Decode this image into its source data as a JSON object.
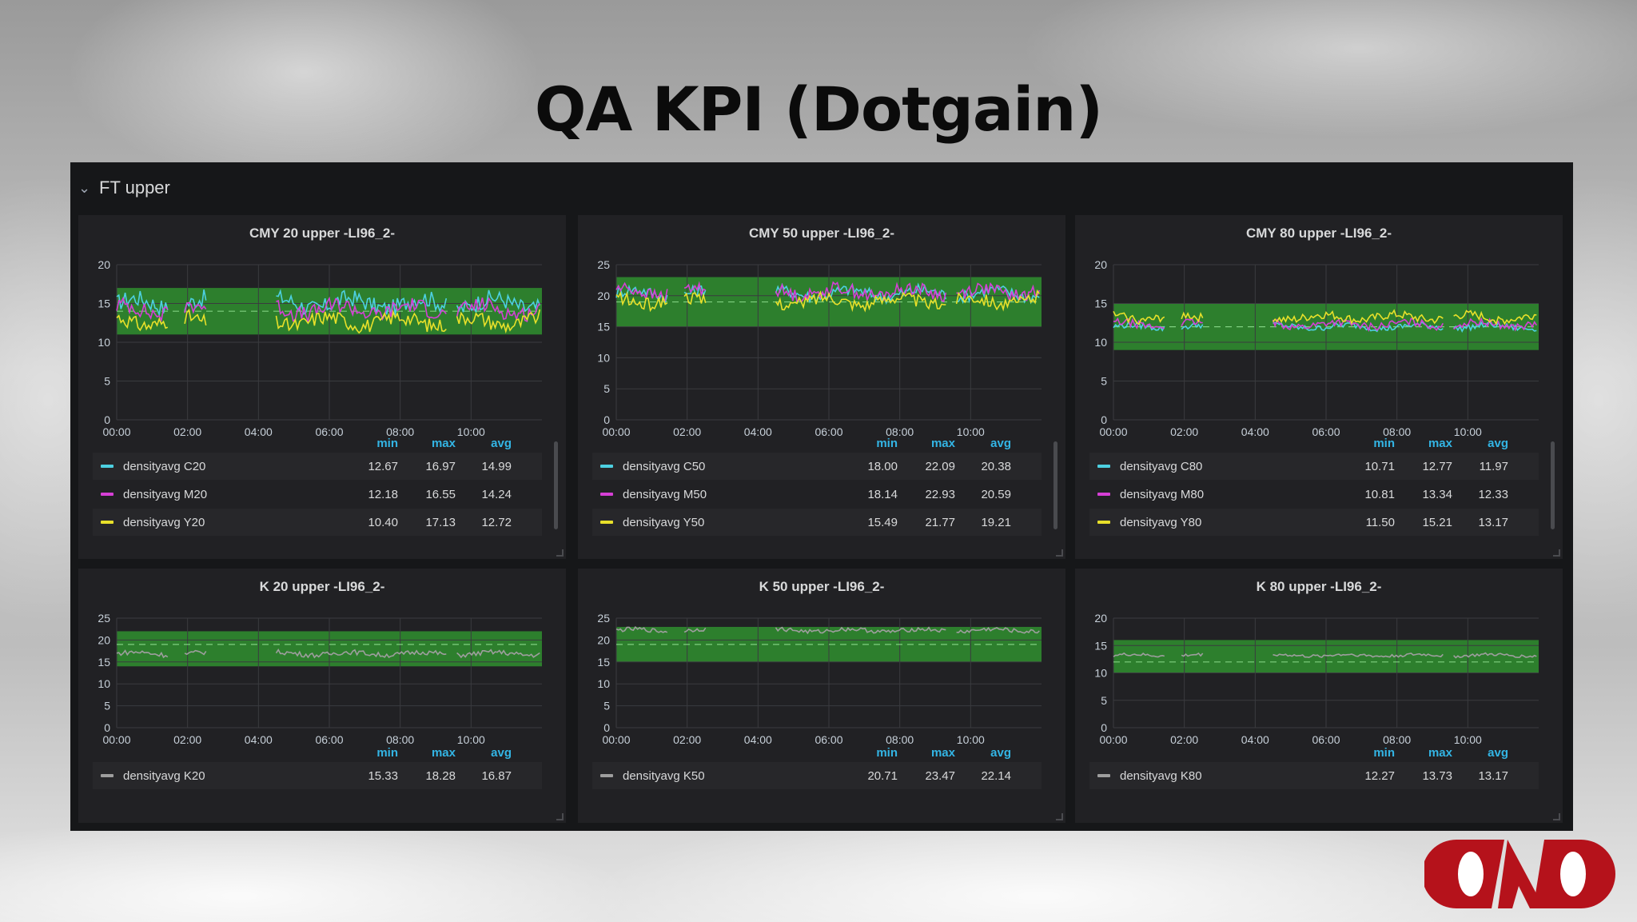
{
  "slide": {
    "title": "QA KPI (Dotgain)"
  },
  "dashboard": {
    "row_title": "FT upper",
    "row_icon": "chevron-down-icon"
  },
  "colors": {
    "cyan": "#4dd0e1",
    "magenta": "#d63fd6",
    "yellow": "#e8e02a",
    "black": "#9e9e9e",
    "threshold": "#2f8f2f",
    "accent": "#33b5e5"
  },
  "legend_headers": {
    "min": "min",
    "max": "max",
    "avg": "avg"
  },
  "chart_data": [
    {
      "type": "line",
      "title": "CMY 20 upper -LI96_2-",
      "x_ticks": [
        "00:00",
        "02:00",
        "04:00",
        "06:00",
        "08:00",
        "10:00"
      ],
      "y_ticks": [
        "0",
        "5",
        "10",
        "15",
        "20"
      ],
      "ylim": [
        0,
        20
      ],
      "xlim": [
        0,
        12
      ],
      "band": [
        11,
        17
      ],
      "target": 14,
      "series": [
        {
          "name": "densityavg C20",
          "color": "#4dd0e1",
          "min": "12.67",
          "max": "16.97",
          "avg": "14.99",
          "base": 15.0,
          "amp": 1.4
        },
        {
          "name": "densityavg M20",
          "color": "#d63fd6",
          "min": "12.18",
          "max": "16.55",
          "avg": "14.24",
          "base": 14.2,
          "amp": 1.3
        },
        {
          "name": "densityavg Y20",
          "color": "#e8e02a",
          "min": "10.40",
          "max": "17.13",
          "avg": "12.72",
          "base": 12.7,
          "amp": 1.2
        }
      ]
    },
    {
      "type": "line",
      "title": "CMY 50 upper -LI96_2-",
      "x_ticks": [
        "00:00",
        "02:00",
        "04:00",
        "06:00",
        "08:00",
        "10:00"
      ],
      "y_ticks": [
        "0",
        "5",
        "10",
        "15",
        "20",
        "25"
      ],
      "ylim": [
        0,
        25
      ],
      "xlim": [
        0,
        12
      ],
      "band": [
        15,
        23
      ],
      "target": 19,
      "series": [
        {
          "name": "densityavg C50",
          "color": "#4dd0e1",
          "min": "18.00",
          "max": "22.09",
          "avg": "20.38",
          "base": 20.4,
          "amp": 1.2
        },
        {
          "name": "densityavg M50",
          "color": "#d63fd6",
          "min": "18.14",
          "max": "22.93",
          "avg": "20.59",
          "base": 20.6,
          "amp": 1.3
        },
        {
          "name": "densityavg Y50",
          "color": "#e8e02a",
          "min": "15.49",
          "max": "21.77",
          "avg": "19.21",
          "base": 19.2,
          "amp": 1.3
        }
      ]
    },
    {
      "type": "line",
      "title": "CMY 80 upper -LI96_2-",
      "x_ticks": [
        "00:00",
        "02:00",
        "04:00",
        "06:00",
        "08:00",
        "10:00"
      ],
      "y_ticks": [
        "0",
        "5",
        "10",
        "15",
        "20"
      ],
      "ylim": [
        0,
        20
      ],
      "xlim": [
        0,
        12
      ],
      "band": [
        9,
        15
      ],
      "target": 12,
      "series": [
        {
          "name": "densityavg C80",
          "color": "#4dd0e1",
          "min": "10.71",
          "max": "12.77",
          "avg": "11.97",
          "base": 12.0,
          "amp": 0.5
        },
        {
          "name": "densityavg M80",
          "color": "#d63fd6",
          "min": "10.81",
          "max": "13.34",
          "avg": "12.33",
          "base": 12.3,
          "amp": 0.6
        },
        {
          "name": "densityavg Y80",
          "color": "#e8e02a",
          "min": "11.50",
          "max": "15.21",
          "avg": "13.17",
          "base": 13.2,
          "amp": 0.7
        }
      ]
    },
    {
      "type": "line",
      "title": "K 20 upper -LI96_2-",
      "x_ticks": [
        "00:00",
        "02:00",
        "04:00",
        "06:00",
        "08:00",
        "10:00"
      ],
      "y_ticks": [
        "0",
        "5",
        "10",
        "15",
        "20",
        "25"
      ],
      "ylim": [
        0,
        25
      ],
      "xlim": [
        0,
        12
      ],
      "band": [
        14,
        22
      ],
      "target": 19,
      "series": [
        {
          "name": "densityavg K20",
          "color": "#9e9e9e",
          "min": "15.33",
          "max": "18.28",
          "avg": "16.87",
          "base": 16.9,
          "amp": 0.7
        }
      ]
    },
    {
      "type": "line",
      "title": "K 50 upper -LI96_2-",
      "x_ticks": [
        "00:00",
        "02:00",
        "04:00",
        "06:00",
        "08:00",
        "10:00"
      ],
      "y_ticks": [
        "0",
        "5",
        "10",
        "15",
        "20",
        "25"
      ],
      "ylim": [
        0,
        25
      ],
      "xlim": [
        0,
        12
      ],
      "band": [
        15,
        23
      ],
      "target": 19,
      "series": [
        {
          "name": "densityavg K50",
          "color": "#9e9e9e",
          "min": "20.71",
          "max": "23.47",
          "avg": "22.14",
          "base": 22.2,
          "amp": 0.6
        }
      ]
    },
    {
      "type": "line",
      "title": "K 80 upper -LI96_2-",
      "x_ticks": [
        "00:00",
        "02:00",
        "04:00",
        "06:00",
        "08:00",
        "10:00"
      ],
      "y_ticks": [
        "0",
        "5",
        "10",
        "15",
        "20"
      ],
      "ylim": [
        0,
        20
      ],
      "xlim": [
        0,
        12
      ],
      "band": [
        10,
        16
      ],
      "target": 12,
      "series": [
        {
          "name": "densityavg K80",
          "color": "#9e9e9e",
          "min": "12.27",
          "max": "13.73",
          "avg": "13.17",
          "base": 13.2,
          "amp": 0.35
        }
      ]
    }
  ]
}
